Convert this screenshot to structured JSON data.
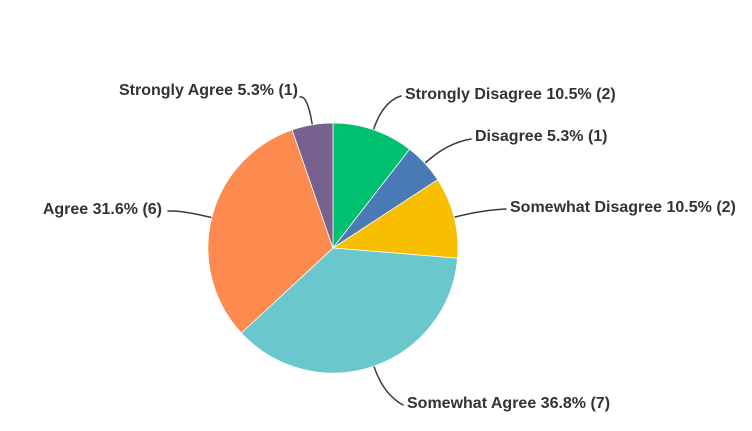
{
  "chart_data": {
    "type": "pie",
    "title": "",
    "legend": "none",
    "background": "#ffffff",
    "text_color": "#333333",
    "leader_color": "#3a3a3a",
    "direction": "clockwise",
    "start_angle_deg": 0,
    "slices": [
      {
        "label": "Strongly Disagree",
        "percent": 10.5,
        "count": 2,
        "display": "Strongly Disagree 10.5% (2)",
        "color": "#00BF6F"
      },
      {
        "label": "Disagree",
        "percent": 5.3,
        "count": 1,
        "display": "Disagree 5.3% (1)",
        "color": "#4A7AB5"
      },
      {
        "label": "Somewhat Disagree",
        "percent": 10.5,
        "count": 2,
        "display": "Somewhat Disagree 10.5% (2)",
        "color": "#F8BE00"
      },
      {
        "label": "Somewhat Agree",
        "percent": 36.8,
        "count": 7,
        "display": "Somewhat Agree 36.8% (7)",
        "color": "#6AC8CD"
      },
      {
        "label": "Agree",
        "percent": 31.6,
        "count": 6,
        "display": "Agree 31.6% (6)",
        "color": "#FD8B50"
      },
      {
        "label": "Strongly Agree",
        "percent": 5.3,
        "count": 1,
        "display": "Strongly Agree 5.3% (1)",
        "color": "#77618F"
      }
    ]
  }
}
